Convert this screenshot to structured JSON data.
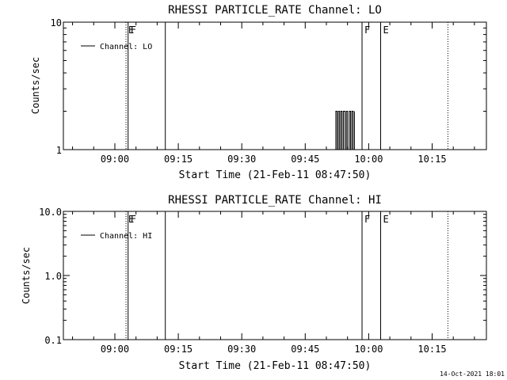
{
  "timestamp": "14-Oct-2021 18:01",
  "chart_data": [
    {
      "type": "line",
      "title": "RHESSI PARTICLE_RATE Channel: LO",
      "xlabel": "Start Time (21-Feb-11 08:47:50)",
      "ylabel": "Counts/sec",
      "x_unit": "minutes after 08:47:50",
      "xlim": [
        0,
        100
      ],
      "ylim": [
        1,
        10
      ],
      "yscale": "log",
      "grid": false,
      "legend_position": "top-left",
      "x_ticks": [
        {
          "label": "09:00",
          "value": 12.17
        },
        {
          "label": "09:15",
          "value": 27.17
        },
        {
          "label": "09:30",
          "value": 42.17
        },
        {
          "label": "09:45",
          "value": 57.17
        },
        {
          "label": "10:00",
          "value": 72.17
        },
        {
          "label": "10:15",
          "value": 87.17
        }
      ],
      "y_ticks": [
        {
          "label": "1",
          "value": 1
        },
        {
          "label": "10",
          "value": 10
        }
      ],
      "series": [
        {
          "name": "Channel: LO",
          "color": "#000000",
          "x": [
            64.4,
            64.4,
            64.7,
            64.7,
            65.0,
            65.0,
            65.3,
            65.3,
            65.6,
            65.6,
            65.9,
            65.9,
            66.2,
            66.2,
            66.6,
            66.6,
            66.9,
            66.9,
            67.2,
            67.2,
            67.6,
            67.6,
            67.9,
            67.9,
            68.2,
            68.2,
            68.5,
            68.5,
            68.8,
            68.8
          ],
          "y": [
            1,
            2,
            2,
            1,
            1,
            2,
            2,
            1,
            1,
            2,
            2,
            1,
            1,
            2,
            2,
            1,
            1,
            2,
            2,
            1,
            1,
            2,
            2,
            1,
            1,
            2,
            2,
            1,
            1,
            2
          ]
        }
      ],
      "markers": [
        {
          "x": 14.8,
          "style": "dotted",
          "label": "E"
        },
        {
          "x": 15.3,
          "style": "solid",
          "label": "F"
        },
        {
          "x": 24.1,
          "style": "solid",
          "label": ""
        },
        {
          "x": 70.6,
          "style": "solid",
          "label": "F"
        },
        {
          "x": 75.0,
          "style": "solid",
          "label": "E"
        },
        {
          "x": 90.9,
          "style": "dotted",
          "label": ""
        }
      ]
    },
    {
      "type": "line",
      "title": "RHESSI PARTICLE_RATE Channel: HI",
      "xlabel": "Start Time (21-Feb-11 08:47:50)",
      "ylabel": "Counts/sec",
      "x_unit": "minutes after 08:47:50",
      "xlim": [
        0,
        100
      ],
      "ylim": [
        0.1,
        10
      ],
      "yscale": "log",
      "grid": false,
      "legend_position": "top-left",
      "x_ticks": [
        {
          "label": "09:00",
          "value": 12.17
        },
        {
          "label": "09:15",
          "value": 27.17
        },
        {
          "label": "09:30",
          "value": 42.17
        },
        {
          "label": "09:45",
          "value": 57.17
        },
        {
          "label": "10:00",
          "value": 72.17
        },
        {
          "label": "10:15",
          "value": 87.17
        }
      ],
      "y_ticks": [
        {
          "label": "0.1",
          "value": 0.1
        },
        {
          "label": "1.0",
          "value": 1
        },
        {
          "label": "10.0",
          "value": 10
        }
      ],
      "series": [
        {
          "name": "Channel: HI",
          "color": "#000000",
          "x": [],
          "y": []
        }
      ],
      "markers": [
        {
          "x": 14.8,
          "style": "dotted",
          "label": "E"
        },
        {
          "x": 15.3,
          "style": "solid",
          "label": "F"
        },
        {
          "x": 24.1,
          "style": "solid",
          "label": ""
        },
        {
          "x": 70.6,
          "style": "solid",
          "label": "F"
        },
        {
          "x": 75.0,
          "style": "solid",
          "label": "E"
        },
        {
          "x": 90.9,
          "style": "dotted",
          "label": ""
        }
      ]
    }
  ]
}
